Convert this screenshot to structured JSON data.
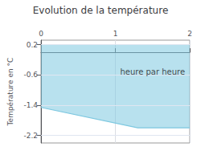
{
  "chart_data": {
    "type": "area",
    "title": "Evolution de la température",
    "ylabel": "Température en °C",
    "x": [
      0,
      1.3,
      2.0
    ],
    "values": [
      -1.46,
      -2.0,
      -2.0
    ],
    "fill_top": 0.2,
    "color": "#7ec8e0",
    "annotations": [
      {
        "text": "heure par heure",
        "x": 1.5,
        "y": -0.52
      }
    ],
    "xlim": [
      0,
      2.0
    ],
    "xticks": [
      0,
      1,
      2
    ],
    "ylim": [
      -2.4,
      0.32
    ],
    "yticks": [
      0.2,
      -0.6,
      -1.4,
      -2.2
    ],
    "grid": true
  }
}
